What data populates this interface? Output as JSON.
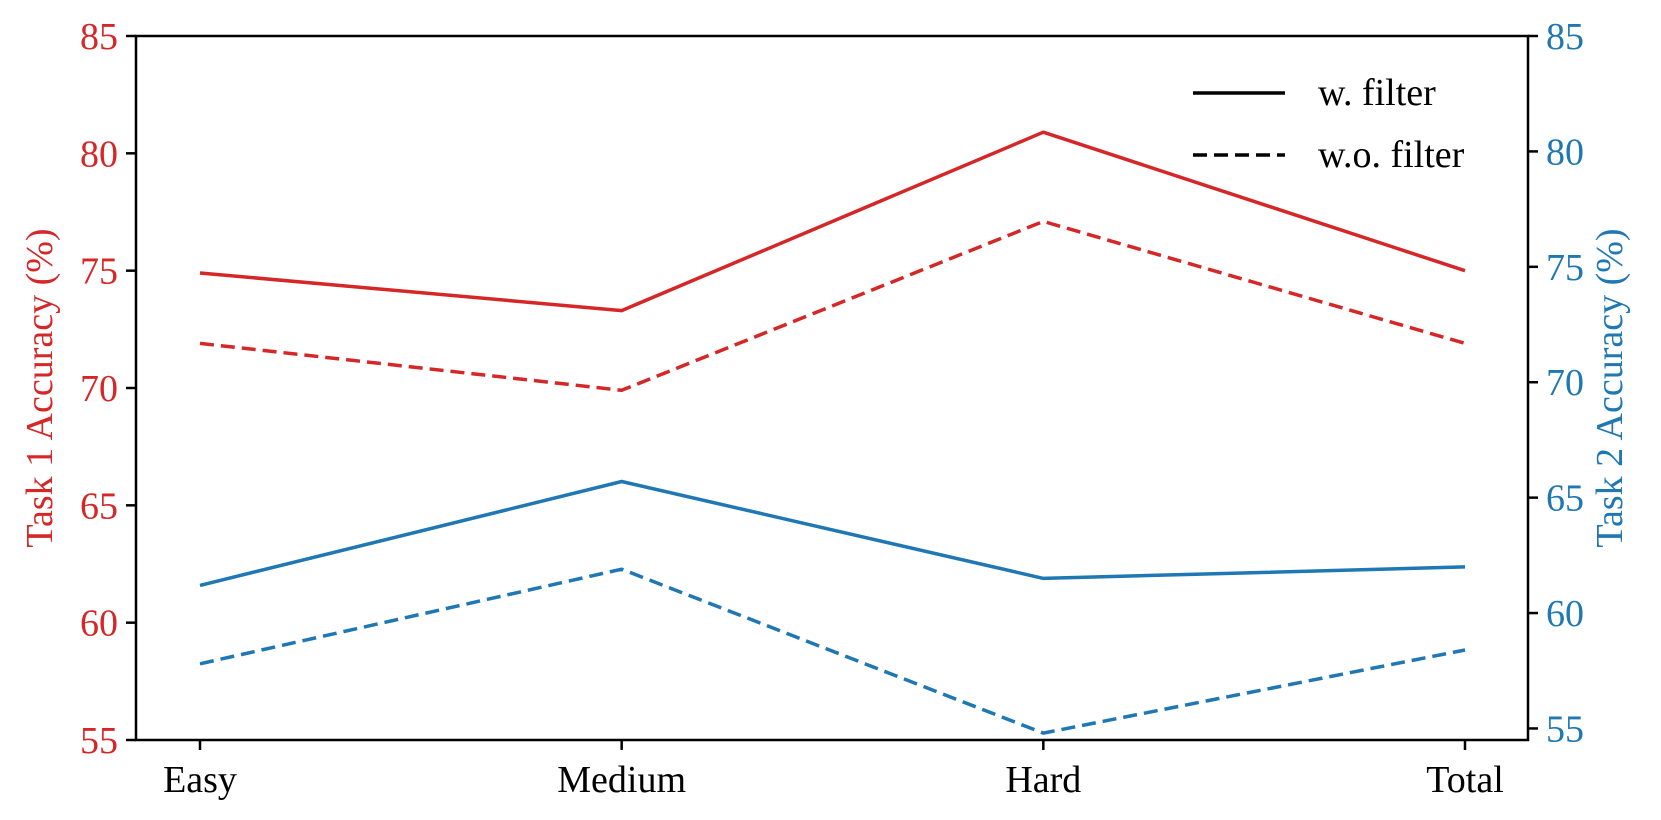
{
  "chart_data": {
    "type": "line",
    "categories": [
      "Easy",
      "Medium",
      "Hard",
      "Total"
    ],
    "y_left": {
      "label": "Task 1 Accuracy (%)",
      "ylim": [
        55,
        85
      ],
      "ticks": [
        55,
        60,
        65,
        70,
        75,
        80,
        85
      ],
      "color": "#d62728"
    },
    "y_right": {
      "label": "Task 2 Accuracy (%)",
      "ylim": [
        54.5,
        85
      ],
      "ticks": [
        55,
        60,
        65,
        70,
        75,
        80,
        85
      ],
      "color": "#1f77b4"
    },
    "series": [
      {
        "axis": "left",
        "style": "solid",
        "color": "#d62728",
        "values": [
          74.9,
          73.3,
          80.9,
          75.0
        ]
      },
      {
        "axis": "left",
        "style": "dashed",
        "color": "#d62728",
        "values": [
          71.9,
          69.9,
          77.1,
          71.9
        ]
      },
      {
        "axis": "right",
        "style": "solid",
        "color": "#1f77b4",
        "values": [
          61.2,
          65.7,
          61.5,
          62.0
        ]
      },
      {
        "axis": "right",
        "style": "dashed",
        "color": "#1f77b4",
        "values": [
          57.8,
          61.9,
          54.8,
          58.4
        ]
      }
    ],
    "legend": {
      "position": "top-right",
      "entries": [
        {
          "label": "w. filter",
          "style": "solid"
        },
        {
          "label": "w.o. filter",
          "style": "dashed"
        }
      ]
    },
    "grid": false
  }
}
